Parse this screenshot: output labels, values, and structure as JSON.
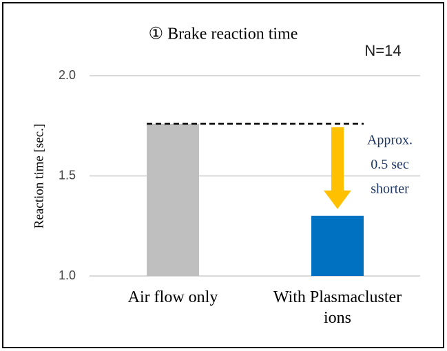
{
  "chart_data": {
    "type": "bar",
    "title": "① Brake reaction time",
    "subtitle": "N=14",
    "y_label": "Reaction time [sec.]",
    "categories": [
      "Air flow only",
      "With Plasmacluster ions"
    ],
    "values": [
      1.76,
      1.3
    ],
    "colors": [
      "#bfbfbf",
      "#0070c0"
    ],
    "ylim": [
      1.0,
      2.0
    ],
    "yticks": [
      {
        "value": 1.0,
        "label": "1.0"
      },
      {
        "value": 1.5,
        "label": "1.5"
      },
      {
        "value": 2.0,
        "label": "2.0"
      }
    ],
    "grid": true,
    "annotation": [
      "Approx.",
      "0.5 sec",
      "shorter"
    ]
  }
}
